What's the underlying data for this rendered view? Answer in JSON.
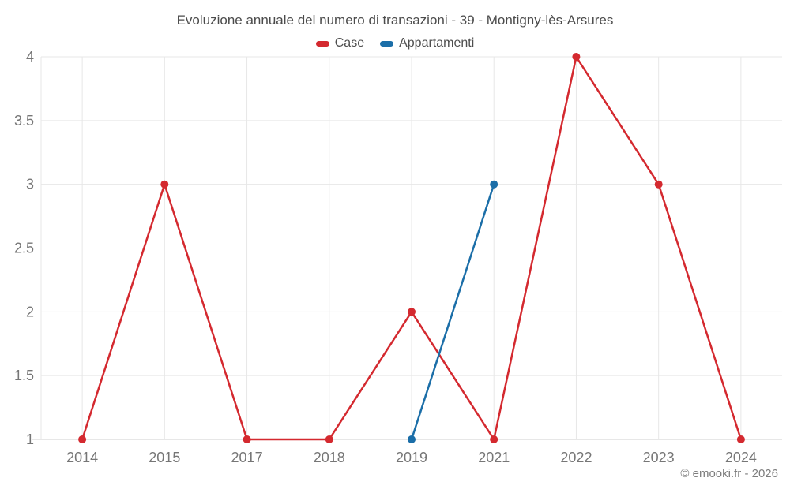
{
  "header": {
    "title": "Evoluzione annuale del numero di transazioni - 39 - Montigny-lès-Arsures"
  },
  "legend": [
    {
      "label": "Case",
      "color": "#d4292f"
    },
    {
      "label": "Appartamenti",
      "color": "#1b6ea8"
    }
  ],
  "footer": {
    "credit": "© emooki.fr - 2026"
  },
  "colors": {
    "grid": "#e7e7e7",
    "axis_line": "#cfcfcf",
    "tick_text": "#767676"
  },
  "chart_data": {
    "type": "line",
    "title": "Evoluzione annuale del numero di transazioni - 39 - Montigny-lès-Arsures",
    "categories": [
      "2014",
      "2015",
      "2017",
      "2018",
      "2019",
      "2021",
      "2022",
      "2023",
      "2024"
    ],
    "series": [
      {
        "name": "Case",
        "color": "#d4292f",
        "values": [
          1,
          3,
          1,
          1,
          2,
          1,
          4,
          3,
          1
        ]
      },
      {
        "name": "Appartamenti",
        "color": "#1b6ea8",
        "values": [
          null,
          null,
          null,
          null,
          1,
          3,
          null,
          null,
          null
        ]
      }
    ],
    "xlabel": "",
    "ylabel": "",
    "ylim": [
      1,
      4
    ],
    "yticks": [
      1,
      1.5,
      2,
      2.5,
      3,
      3.5,
      4
    ],
    "grid": true,
    "legend_position": "top",
    "marker_radius": 5,
    "line_width": 2.5
  }
}
